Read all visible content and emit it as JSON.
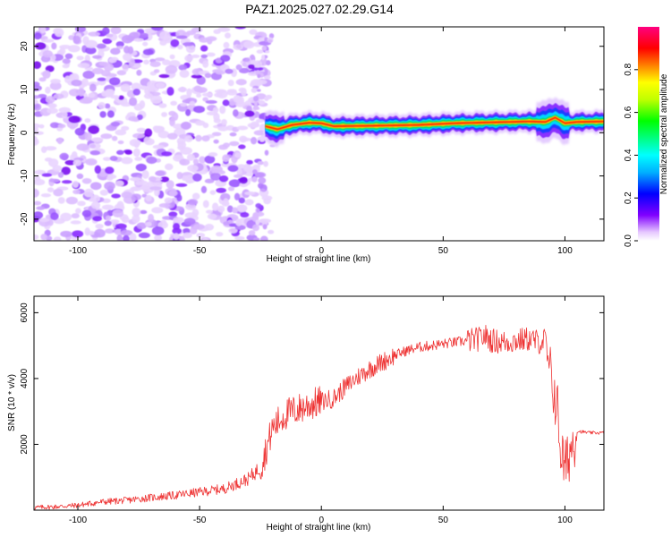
{
  "title": "PAZ1.2025.027.02.29.G14",
  "chart_data": [
    {
      "type": "heatmap",
      "xlabel": "Height of straight line (km)",
      "ylabel": "Frequency (Hz)",
      "xlim": [
        -118,
        116
      ],
      "ylim": [
        -25,
        24.5
      ],
      "xticks": [
        -100,
        -50,
        0,
        50,
        100
      ],
      "yticks": [
        -20,
        -10,
        0,
        10,
        20
      ],
      "colorbar": {
        "label": "Normalized spectral amplitude",
        "range": [
          0,
          1
        ],
        "ticks": [
          0.0,
          0.2,
          0.4,
          0.6,
          0.8
        ]
      },
      "signal_ridge": {
        "x": [
          -23,
          -18,
          -12,
          -5,
          0,
          5,
          20,
          40,
          55,
          70,
          85,
          92,
          96,
          100,
          105,
          116
        ],
        "frequency": [
          1.5,
          0.8,
          1.8,
          2.3,
          2.2,
          1.5,
          1.6,
          1.8,
          2.2,
          2.4,
          2.6,
          2.5,
          3.5,
          2.2,
          2.5,
          2.6
        ]
      },
      "noise_region_x": [
        -118,
        -22
      ]
    },
    {
      "type": "line",
      "xlabel": "Height of straight line (km)",
      "ylabel": "SNR (10 * v/v)",
      "xlim": [
        -118,
        116
      ],
      "ylim": [
        0,
        6500
      ],
      "xticks": [
        -100,
        -50,
        0,
        50,
        100
      ],
      "yticks": [
        2000,
        4000,
        6000
      ],
      "line_color": "#ee3333",
      "series": [
        {
          "x": [
            -118,
            -110,
            -100,
            -90,
            -80,
            -70,
            -60,
            -50,
            -40,
            -35,
            -30,
            -25,
            -22,
            -20,
            -15,
            -10,
            -5,
            0,
            5,
            10,
            15,
            20,
            25,
            30,
            35,
            40,
            45,
            50,
            55,
            60,
            65,
            67,
            70,
            75,
            80,
            85,
            90,
            92,
            93,
            95,
            97,
            98,
            100,
            102,
            105,
            110,
            116
          ],
          "values": [
            80,
            100,
            150,
            250,
            300,
            380,
            450,
            550,
            650,
            800,
            950,
            1300,
            2000,
            2500,
            2900,
            3050,
            3200,
            3300,
            3400,
            3750,
            4050,
            4300,
            4500,
            4700,
            4850,
            4950,
            5000,
            5050,
            5100,
            5150,
            5200,
            5300,
            5150,
            5100,
            5150,
            5200,
            5100,
            5200,
            4500,
            3800,
            3000,
            2000,
            1200,
            1800,
            2400,
            2350,
            2350
          ]
        }
      ]
    }
  ]
}
